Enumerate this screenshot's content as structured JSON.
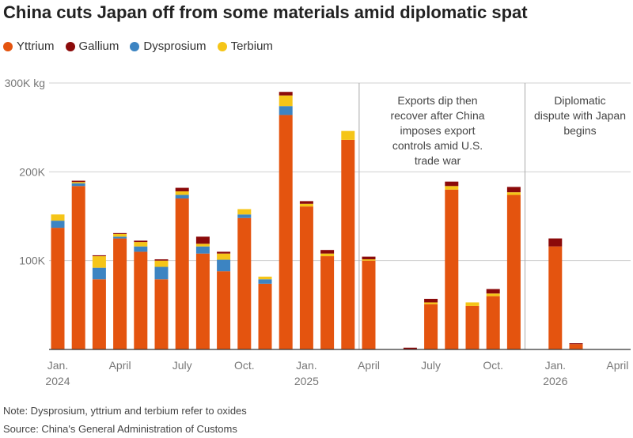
{
  "title": "China cuts Japan off from some materials amid diplomatic spat",
  "legend": [
    {
      "name": "Yttrium",
      "color": "#e4540f"
    },
    {
      "name": "Gallium",
      "color": "#8b0a0a"
    },
    {
      "name": "Dysprosium",
      "color": "#3c84c2"
    },
    {
      "name": "Terbium",
      "color": "#f5c518"
    }
  ],
  "note": "Note: Dysprosium, yttrium and terbium refer to oxides",
  "source": "Source: China's General Administration of Customs",
  "chart_data": {
    "type": "bar",
    "stacked": true,
    "categories": [
      "2024-01",
      "2024-02",
      "2024-03",
      "2024-04",
      "2024-05",
      "2024-06",
      "2024-07",
      "2024-08",
      "2024-09",
      "2024-10",
      "2024-11",
      "2024-12",
      "2025-01",
      "2025-02",
      "2025-03",
      "2025-04",
      "2025-05",
      "2025-06",
      "2025-07",
      "2025-08",
      "2025-09",
      "2025-10",
      "2025-11",
      "2025-12",
      "2026-01",
      "2026-02",
      "2026-03"
    ],
    "series": [
      {
        "name": "Yttrium",
        "color": "#e4540f",
        "values": [
          137000,
          184000,
          79000,
          125000,
          110000,
          79000,
          170000,
          108000,
          88000,
          148000,
          74000,
          264000,
          161000,
          105000,
          236000,
          100000,
          0,
          0,
          51000,
          180000,
          49000,
          60000,
          174000,
          0,
          116000,
          6000,
          0
        ]
      },
      {
        "name": "Dysprosium",
        "color": "#3c84c2",
        "values": [
          8000,
          3000,
          13000,
          2000,
          6000,
          14000,
          4000,
          8000,
          13000,
          4000,
          5000,
          10000,
          0,
          0,
          0,
          0,
          0,
          0,
          0,
          0,
          0,
          0,
          0,
          0,
          0,
          0,
          0
        ]
      },
      {
        "name": "Terbium",
        "color": "#f5c518",
        "values": [
          7000,
          1500,
          13000,
          3000,
          5000,
          7000,
          4000,
          3000,
          7000,
          6000,
          3000,
          12000,
          3000,
          3000,
          10000,
          1500,
          0,
          0,
          2000,
          4000,
          4000,
          3000,
          3000,
          0,
          0,
          0,
          0
        ]
      },
      {
        "name": "Gallium",
        "color": "#8b0a0a",
        "values": [
          0,
          1500,
          1000,
          1000,
          1500,
          1500,
          4000,
          8000,
          2000,
          0,
          0,
          4000,
          3000,
          4000,
          0,
          3000,
          0,
          2000,
          4000,
          5000,
          0,
          5000,
          6000,
          0,
          9000,
          1000,
          0
        ]
      }
    ],
    "ylim": [
      0,
      300000
    ],
    "y_ticks": [
      {
        "value": 100000,
        "label": "100K"
      },
      {
        "value": 200000,
        "label": "200K"
      },
      {
        "value": 300000,
        "label": "300K kg"
      }
    ],
    "x_ticks": [
      {
        "index": 0,
        "label": "Jan.",
        "year": "2024"
      },
      {
        "index": 3,
        "label": "April"
      },
      {
        "index": 6,
        "label": "July"
      },
      {
        "index": 9,
        "label": "Oct."
      },
      {
        "index": 12,
        "label": "Jan.",
        "year": "2025"
      },
      {
        "index": 15,
        "label": "April"
      },
      {
        "index": 18,
        "label": "July"
      },
      {
        "index": 21,
        "label": "Oct."
      },
      {
        "index": 24,
        "label": "Jan.",
        "year": "2026"
      },
      {
        "index": 27,
        "label": "April"
      }
    ],
    "annotations": [
      {
        "at": 15,
        "lines": [
          "Exports dip then",
          "recover after China",
          "imposes export",
          "controls amid U.S.",
          "trade war"
        ]
      },
      {
        "at": 23,
        "lines": [
          "Diplomatic",
          "dispute with Japan",
          "begins"
        ]
      }
    ]
  }
}
